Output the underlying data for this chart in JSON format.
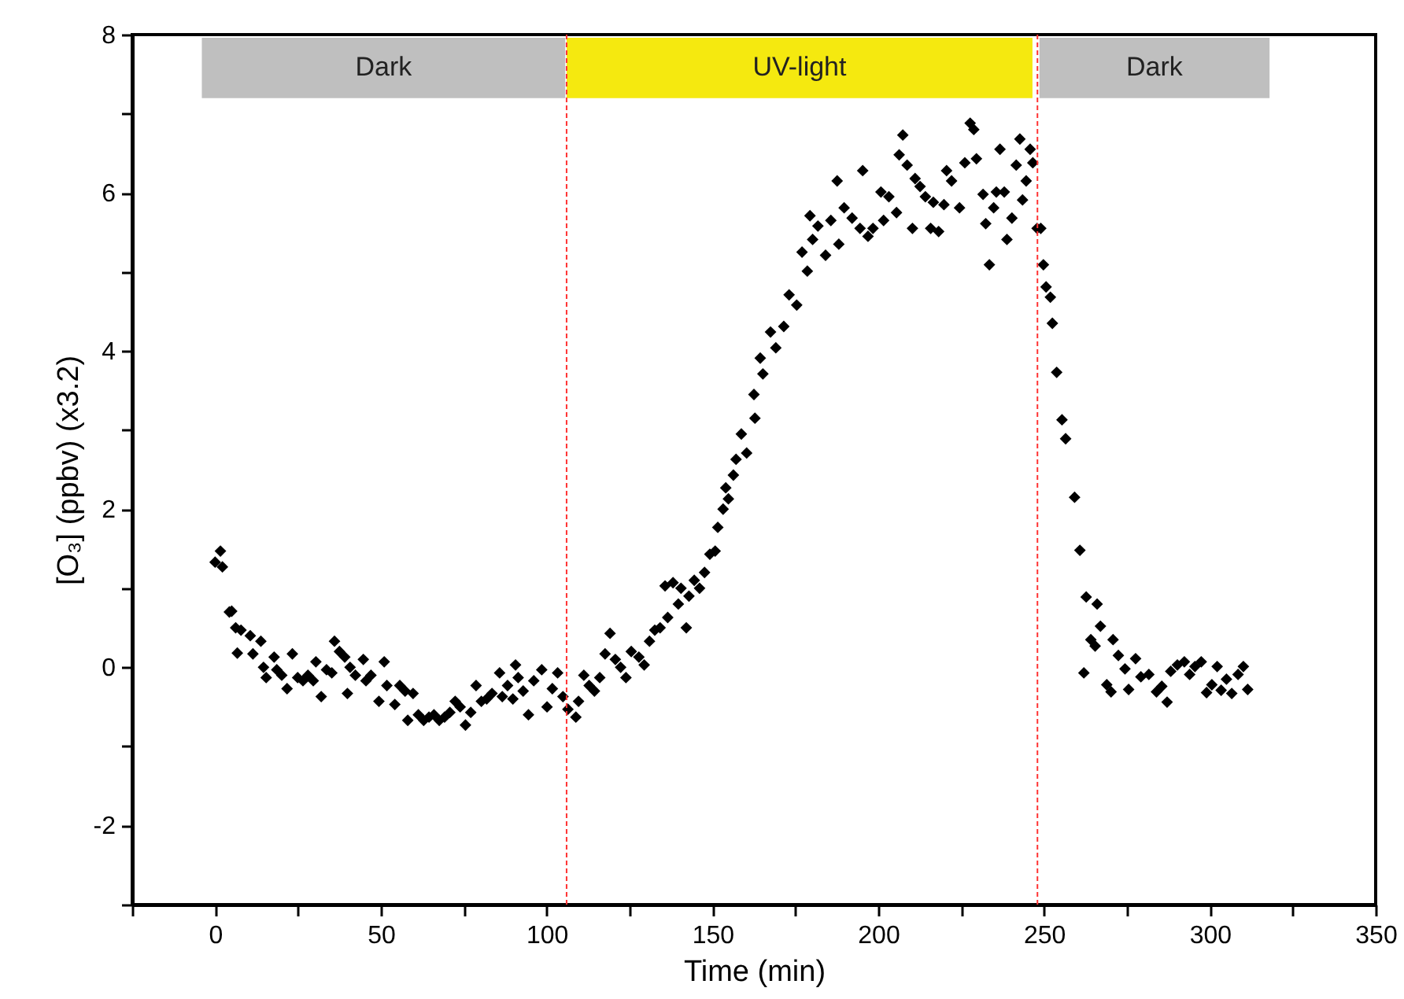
{
  "chart_data": {
    "type": "scatter",
    "xlabel": "Time (min)",
    "ylabel": "[O₃] (ppbv) (x3.2)",
    "xlim": [
      -25,
      350
    ],
    "ylim": [
      -3,
      8
    ],
    "xticks": [
      {
        "value": -25,
        "label": null
      },
      0,
      {
        "value": 25,
        "label": null
      },
      50,
      {
        "value": 75,
        "label": null
      },
      100,
      {
        "value": 125,
        "label": null
      },
      150,
      {
        "value": 175,
        "label": null
      },
      200,
      {
        "value": 225,
        "label": null
      },
      250,
      {
        "value": 275,
        "label": null
      },
      300,
      {
        "value": 325,
        "label": null
      },
      350
    ],
    "yticks": [
      {
        "value": -3,
        "label": null
      },
      -2,
      {
        "value": -1,
        "label": null
      },
      0,
      {
        "value": 1,
        "label": null
      },
      2,
      {
        "value": 3,
        "label": null
      },
      4,
      {
        "value": 5,
        "label": null
      },
      6,
      {
        "value": 7,
        "label": null
      },
      8
    ],
    "marker": "diamond",
    "bands": [
      {
        "axis": "x",
        "from": -4,
        "to": 105.6,
        "label": "Dark",
        "color": "#bfbfbf"
      },
      {
        "axis": "x",
        "from": 106,
        "to": 246.5,
        "label": "UV-light",
        "color": "#f5e90f"
      },
      {
        "axis": "x",
        "from": 248.6,
        "to": 318,
        "label": "Dark",
        "color": "#bfbfbf"
      }
    ],
    "ref_lines": [
      {
        "axis": "x",
        "value": 106,
        "color": "#ff3333",
        "line_style": "dashed"
      },
      {
        "axis": "x",
        "value": 248,
        "color": "#ff3333",
        "line_style": "dashed"
      }
    ],
    "series": [
      {
        "color": "#000000",
        "x": [
          0,
          1.6,
          2.2,
          4.3,
          5,
          6.2,
          7.8,
          6.7,
          10.6,
          11.4,
          13.8,
          14.6,
          15.4,
          17.8,
          18.6,
          20.1,
          21.7,
          23.3,
          24.9,
          26.5,
          28,
          29.6,
          30.4,
          32,
          33.6,
          35.2,
          36,
          37.5,
          39.1,
          39.9,
          40.7,
          42.3,
          44.7,
          45.5,
          47,
          49.4,
          51,
          51.8,
          54.2,
          55.7,
          57.3,
          58.1,
          59.7,
          61.3,
          62.9,
          64.5,
          66,
          67.6,
          69.2,
          70.8,
          72.4,
          73.9,
          75.5,
          77.1,
          78.7,
          80.3,
          81.9,
          83.5,
          85.8,
          86.6,
          88.2,
          89.8,
          90.6,
          91.4,
          92.9,
          94.5,
          96.1,
          98.5,
          100.1,
          101.7,
          103.3,
          104.9,
          106.4,
          108.8,
          109.6,
          111.2,
          112.8,
          114.4,
          116,
          117.6,
          119.1,
          120.7,
          122.3,
          123.9,
          125.5,
          127.8,
          129.4,
          131,
          132.6,
          134.2,
          135.7,
          136.5,
          138.1,
          139.7,
          140.5,
          142.1,
          142.9,
          144.5,
          146.1,
          147.6,
          149.2,
          150.8,
          151.6,
          153.2,
          154,
          154.8,
          156.3,
          157.1,
          158.7,
          160.3,
          162.5,
          162.8,
          165.2,
          164.4,
          167.5,
          169.1,
          171.5,
          173.1,
          175.4,
          178.6,
          177,
          180.2,
          179.4,
          181.8,
          184.1,
          185.7,
          188.1,
          189.7,
          187.6,
          192.1,
          194.5,
          195.3,
          196.9,
          198.4,
          200.8,
          201.6,
          203.2,
          205.5,
          206.3,
          207.4,
          208.7,
          210.3,
          211.1,
          212.6,
          214.2,
          215.8,
          216.6,
          218.2,
          219.8,
          220.6,
          222.1,
          224.5,
          226.1,
          227.7,
          228.8,
          229.6,
          231.6,
          232.4,
          233.5,
          234.8,
          235.6,
          236.7,
          238,
          238.8,
          240.3,
          241.6,
          242.7,
          243.5,
          244.6,
          245.8,
          246.6,
          247.9,
          249,
          249.8,
          250.6,
          251.9,
          252.5,
          253.8,
          255.4,
          256.5,
          259.2,
          260.8,
          262.7,
          266,
          262,
          264.1,
          265.4,
          267,
          268.9,
          270.2,
          270.8,
          272.4,
          274.4,
          275.5,
          277.6,
          279.2,
          281.6,
          283.9,
          285.5,
          287.1,
          288.2,
          290.2,
          292.3,
          293.9,
          295.5,
          297.4,
          299,
          300.6,
          302.2,
          303.4,
          305,
          306.6,
          308.5,
          310.1,
          311.4
        ],
        "values": [
          1.33,
          1.47,
          1.27,
          0.7,
          0.71,
          0.5,
          0.47,
          0.18,
          0.4,
          0.17,
          0.33,
          0,
          -0.13,
          0.13,
          -0.03,
          -0.1,
          -0.27,
          0.17,
          -0.13,
          -0.17,
          -0.1,
          -0.17,
          0.07,
          -0.37,
          -0.03,
          -0.07,
          0.33,
          0.2,
          0.13,
          -0.33,
          0,
          -0.1,
          0.1,
          -0.17,
          -0.1,
          -0.43,
          0.07,
          -0.23,
          -0.47,
          -0.23,
          -0.3,
          -0.67,
          -0.33,
          -0.6,
          -0.67,
          -0.63,
          -0.6,
          -0.67,
          -0.63,
          -0.57,
          -0.43,
          -0.5,
          -0.73,
          -0.57,
          -0.23,
          -0.43,
          -0.4,
          -0.33,
          -0.07,
          -0.37,
          -0.23,
          -0.4,
          0.03,
          -0.13,
          -0.3,
          -0.6,
          -0.17,
          -0.03,
          -0.5,
          -0.27,
          -0.07,
          -0.37,
          -0.53,
          -0.63,
          -0.43,
          -0.1,
          -0.23,
          -0.3,
          -0.13,
          0.17,
          0.43,
          0.1,
          0,
          -0.13,
          0.2,
          0.13,
          0.03,
          0.33,
          0.47,
          0.5,
          1.03,
          0.63,
          1.07,
          0.8,
          1,
          0.5,
          0.9,
          1.1,
          1,
          1.2,
          1.43,
          1.47,
          1.77,
          2,
          2.27,
          2.13,
          2.43,
          2.63,
          2.95,
          2.71,
          3.45,
          3.15,
          3.71,
          3.91,
          4.24,
          4.04,
          4.31,
          4.71,
          4.58,
          5.01,
          5.25,
          5.41,
          5.71,
          5.58,
          5.21,
          5.65,
          5.35,
          5.81,
          6.15,
          5.68,
          5.55,
          6.28,
          5.45,
          5.55,
          6.01,
          5.65,
          5.95,
          5.75,
          6.48,
          6.73,
          6.35,
          5.55,
          6.18,
          6.08,
          5.95,
          5.55,
          5.88,
          5.51,
          5.85,
          6.28,
          6.15,
          5.81,
          6.38,
          6.88,
          6.8,
          6.43,
          5.98,
          5.61,
          5.09,
          5.81,
          6.01,
          6.55,
          6.01,
          5.41,
          5.68,
          6.35,
          6.68,
          5.91,
          6.15,
          6.55,
          6.38,
          5.55,
          5.55,
          5.09,
          4.81,
          4.68,
          4.35,
          3.73,
          3.13,
          2.89,
          2.15,
          1.48,
          0.89,
          0.8,
          -0.07,
          0.35,
          0.27,
          0.52,
          -0.22,
          -0.31,
          0.35,
          0.15,
          -0.02,
          -0.28,
          0.11,
          -0.12,
          -0.09,
          -0.31,
          -0.24,
          -0.44,
          -0.05,
          0.03,
          0.07,
          -0.09,
          0.01,
          0.07,
          -0.32,
          -0.22,
          0.01,
          -0.29,
          -0.15,
          -0.33,
          -0.09,
          0.01,
          -0.28
        ]
      }
    ]
  }
}
